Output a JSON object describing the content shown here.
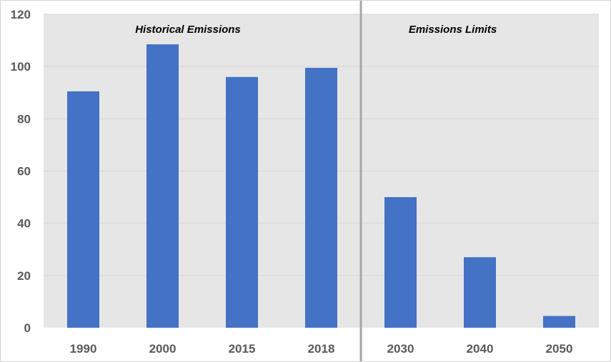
{
  "chart_data": {
    "type": "bar",
    "categories": [
      "1990",
      "2000",
      "2015",
      "2018",
      "2030",
      "2040",
      "2050"
    ],
    "values": [
      90.5,
      108.5,
      96,
      99.5,
      50,
      27,
      4.5
    ],
    "ylim": [
      0,
      120
    ],
    "yticks": [
      0,
      20,
      40,
      60,
      80,
      100,
      120
    ],
    "title": "",
    "xlabel": "",
    "ylabel": "",
    "grid": true,
    "legend": "none",
    "divider_after_category": "2018",
    "annotations": [
      {
        "text": "Historical Emissions",
        "group": "historical"
      },
      {
        "text": "Emissions Limits",
        "group": "limits"
      }
    ],
    "colors": {
      "bar": "#4472C4",
      "plot_background": "#E6E6E6",
      "gridline": "#D6D6D6",
      "divider": "#A6A6A6",
      "axis_text": "#595959"
    }
  }
}
